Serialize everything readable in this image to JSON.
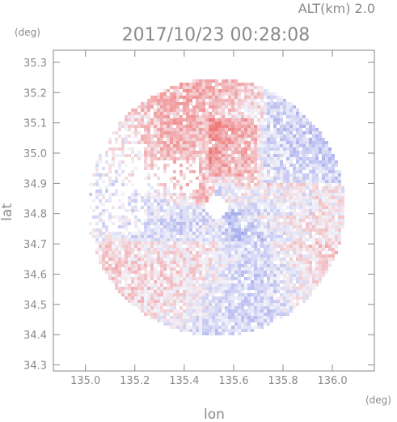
{
  "chart_data": {
    "type": "heatmap",
    "title": "2017/10/23 00:28:08",
    "subtitle": "ALT(km) 2.0",
    "xlabel": "lon",
    "ylabel": "lat",
    "x_unit": "(deg)",
    "y_unit": "(deg)",
    "xlim": [
      134.87,
      136.17
    ],
    "ylim": [
      34.28,
      35.34
    ],
    "x_ticks": [
      {
        "value": 135.0,
        "label": "135.0"
      },
      {
        "value": 135.2,
        "label": "135.2"
      },
      {
        "value": 135.4,
        "label": "135.4"
      },
      {
        "value": 135.6,
        "label": "135.6"
      },
      {
        "value": 135.8,
        "label": "135.8"
      },
      {
        "value": 136.0,
        "label": "136.0"
      }
    ],
    "y_ticks": [
      {
        "value": 34.3,
        "label": "34.3"
      },
      {
        "value": 34.4,
        "label": "34.4"
      },
      {
        "value": 34.5,
        "label": "34.5"
      },
      {
        "value": 34.6,
        "label": "34.6"
      },
      {
        "value": 34.7,
        "label": "34.7"
      },
      {
        "value": 34.8,
        "label": "34.8"
      },
      {
        "value": 34.9,
        "label": "34.9"
      },
      {
        "value": 35.0,
        "label": "35.0"
      },
      {
        "value": 35.1,
        "label": "35.1"
      },
      {
        "value": 35.2,
        "label": "35.2"
      },
      {
        "value": 35.3,
        "label": "35.3"
      }
    ],
    "grid": false,
    "radar": {
      "center_lon": 135.53,
      "center_lat": 34.82,
      "range_deg": 0.52,
      "inner_gap_deg": 0.045
    },
    "color_scale": {
      "negative": "#7b85e6",
      "neutral": "#f4f4fa",
      "positive": "#f06d6d"
    }
  }
}
